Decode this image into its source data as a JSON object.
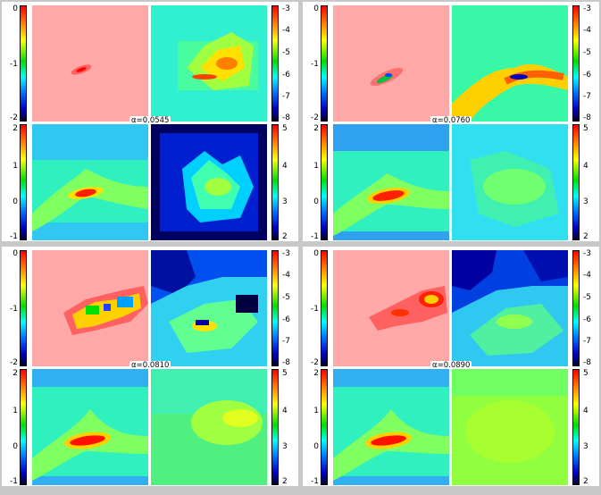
{
  "quadrants": [
    {
      "alpha": "α=0.0545",
      "left_ticks_top": [
        "0",
        "-1",
        "-2"
      ],
      "left_ticks_bottom": [
        "2",
        "1",
        "0",
        "-1"
      ],
      "right_ticks_top": [
        "-3",
        "-4",
        "-5",
        "-6",
        "-7",
        "-8"
      ],
      "right_ticks_bottom": [
        "5",
        "4",
        "3",
        "2"
      ]
    },
    {
      "alpha": "α=0.0760",
      "left_ticks_top": [
        "0",
        "-1",
        "-2"
      ],
      "left_ticks_bottom": [
        "2",
        "1",
        "0",
        "-1"
      ],
      "right_ticks_top": [
        "-3",
        "-4",
        "-5",
        "-6",
        "-7",
        "-8"
      ],
      "right_ticks_bottom": [
        "5",
        "4",
        "3",
        "2"
      ]
    },
    {
      "alpha": "α=0.0810",
      "left_ticks_top": [
        "0",
        "-1",
        "-2"
      ],
      "left_ticks_bottom": [
        "2",
        "1",
        "0",
        "-1"
      ],
      "right_ticks_top": [
        "-3",
        "-4",
        "-5",
        "-6",
        "-7",
        "-8"
      ],
      "right_ticks_bottom": [
        "5",
        "4",
        "3",
        "2"
      ]
    },
    {
      "alpha": "α=0.0890",
      "left_ticks_top": [
        "0",
        "-1",
        "-2"
      ],
      "left_ticks_bottom": [
        "2",
        "1",
        "0",
        "-1"
      ],
      "right_ticks_top": [
        "-3",
        "-4",
        "-5",
        "-6",
        "-7",
        "-8"
      ],
      "right_ticks_bottom": [
        "5",
        "4",
        "3",
        "2"
      ]
    }
  ],
  "colors": {
    "background": "#c8c8c8",
    "pink_field": "#ffa8a8",
    "cyan_field": "#30f0d0"
  }
}
